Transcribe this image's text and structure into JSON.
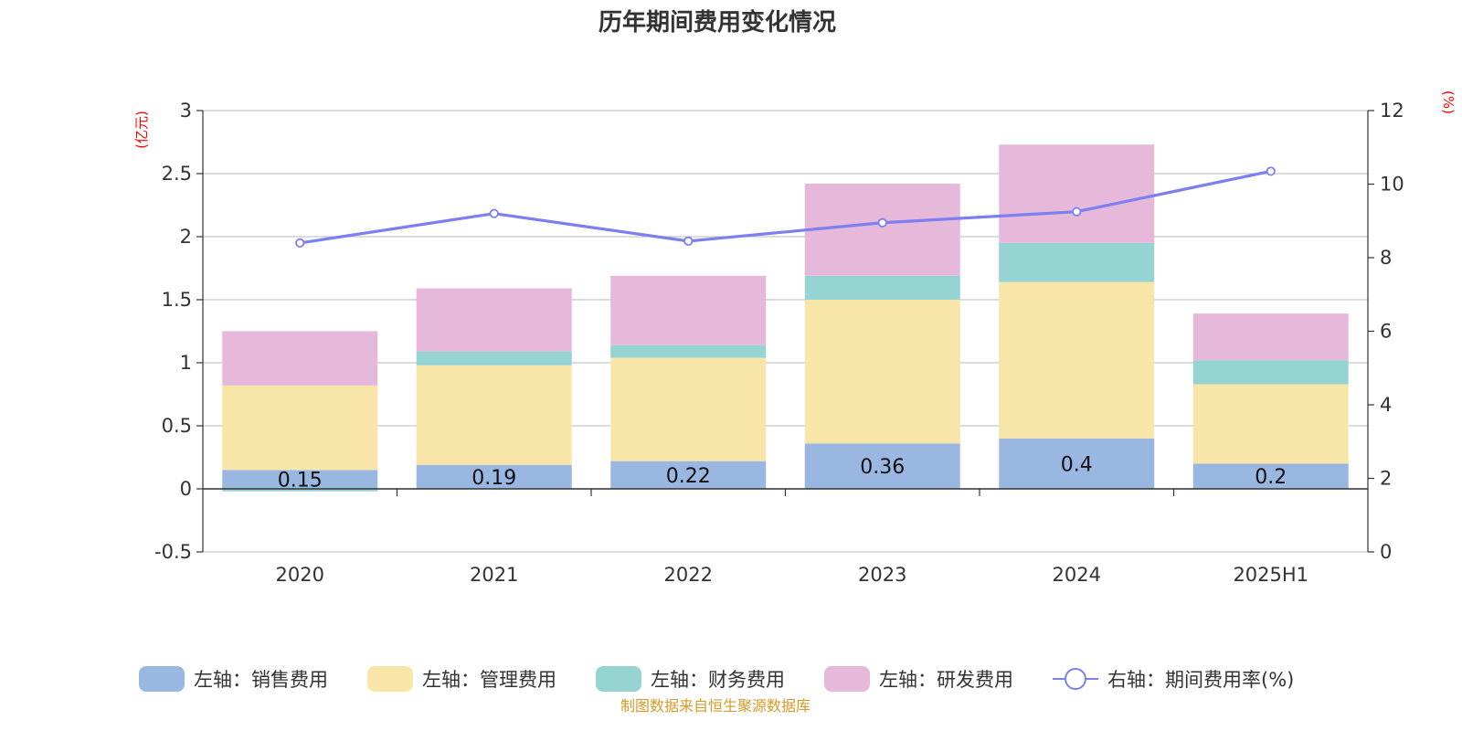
{
  "chart_data": {
    "type": "bar",
    "stacked": true,
    "title": "历年期间费用变化情况",
    "categories": [
      "2020",
      "2021",
      "2022",
      "2023",
      "2024",
      "2025H1"
    ],
    "series": [
      {
        "name": "左轴：销售费用",
        "axis": "left",
        "type": "bar",
        "color": "#9ab7e1",
        "values": [
          0.15,
          0.19,
          0.22,
          0.36,
          0.4,
          0.2
        ],
        "data_labels": [
          "0.15",
          "0.19",
          "0.22",
          "0.36",
          "0.4",
          "0.2"
        ]
      },
      {
        "name": "左轴：管理费用",
        "axis": "left",
        "type": "bar",
        "color": "#f8e6a8",
        "values": [
          0.67,
          0.79,
          0.82,
          1.14,
          1.24,
          0.63
        ]
      },
      {
        "name": "左轴：财务费用",
        "axis": "left",
        "type": "bar",
        "color": "#96d4d4",
        "values": [
          -0.02,
          0.11,
          0.1,
          0.19,
          0.31,
          0.19
        ]
      },
      {
        "name": "左轴：研发费用",
        "axis": "left",
        "type": "bar",
        "color": "#e6b8d9",
        "values": [
          0.43,
          0.5,
          0.55,
          0.73,
          0.78,
          0.37
        ]
      },
      {
        "name": "右轴：期间费用率(%)",
        "axis": "right",
        "type": "line",
        "color": "#7b7ff0",
        "values": [
          8.4,
          9.2,
          8.45,
          8.95,
          9.25,
          10.35
        ]
      }
    ],
    "left_axis": {
      "unit": "(亿元)",
      "ylim": [
        -0.5,
        3
      ],
      "ticks": [
        "3",
        "2.5",
        "2",
        "1.5",
        "1",
        "0.5",
        "0",
        "-0.5"
      ]
    },
    "right_axis": {
      "unit": "(%)",
      "ylim": [
        0,
        12
      ],
      "ticks": [
        "12",
        "10",
        "8",
        "6",
        "4",
        "2",
        "0"
      ]
    },
    "grid": true,
    "legend_position": "bottom",
    "source": "制图数据来自恒生聚源数据库"
  }
}
